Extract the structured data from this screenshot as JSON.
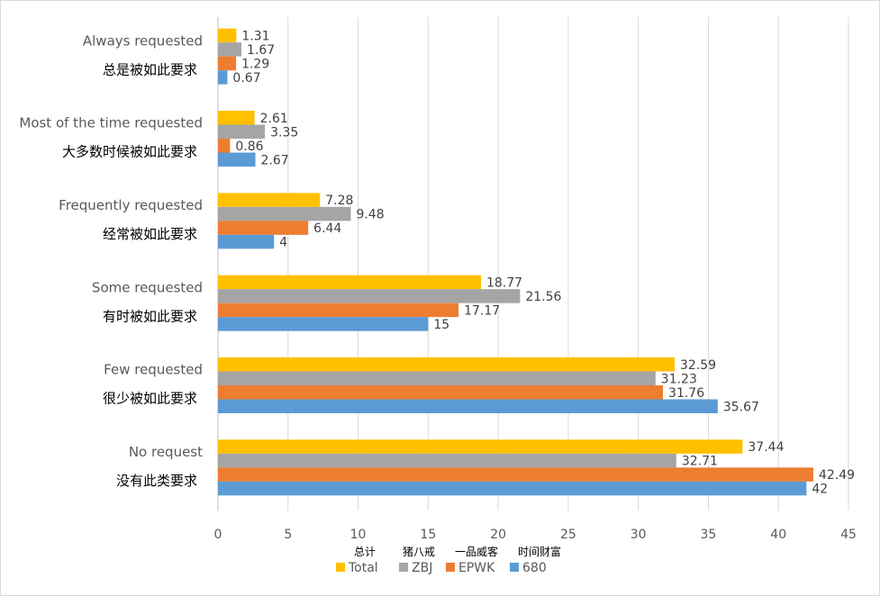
{
  "chart_data": {
    "type": "bar",
    "orientation": "horizontal",
    "categories": [
      {
        "en": "No request",
        "zh": "没有此类要求"
      },
      {
        "en": "Few requested",
        "zh": "很少被如此要求"
      },
      {
        "en": "Some requested",
        "zh": "有时被如此要求"
      },
      {
        "en": "Frequently requested",
        "zh": "经常被如此要求"
      },
      {
        "en": "Most of the time requested",
        "zh": "大多数时候被如此要求"
      },
      {
        "en": "Always requested",
        "zh": "总是被如此要求"
      }
    ],
    "series": [
      {
        "name": "Total",
        "name_zh": "总计",
        "color": "#FFC000",
        "values": [
          37.44,
          32.59,
          18.77,
          7.28,
          2.61,
          1.31
        ]
      },
      {
        "name": "ZBJ",
        "name_zh": "猪八戒",
        "color": "#A5A5A5",
        "values": [
          32.71,
          31.23,
          21.56,
          9.48,
          3.35,
          1.67
        ]
      },
      {
        "name": "EPWK",
        "name_zh": "一品威客",
        "color": "#ED7D31",
        "values": [
          42.49,
          31.76,
          17.17,
          6.44,
          0.86,
          1.29
        ]
      },
      {
        "name": "680",
        "name_zh": "时间财富",
        "color": "#5B9BD5",
        "values": [
          42,
          35.67,
          15,
          4,
          2.67,
          0.67
        ]
      }
    ],
    "value_labels": {
      "Total": [
        "37.44",
        "32.59",
        "18.77",
        "7.28",
        "2.61",
        "1.31"
      ],
      "ZBJ": [
        "32.71",
        "31.23",
        "21.56",
        "9.48",
        "3.35",
        "1.67"
      ],
      "EPWK": [
        "42.49",
        "31.76",
        "17.17",
        "6.44",
        "0.86",
        "1.29"
      ],
      "680": [
        "42",
        "35.67",
        "15",
        "4",
        "2.67",
        "0.67"
      ]
    },
    "xticks": [
      "0",
      "5",
      "10",
      "15",
      "20",
      "25",
      "30",
      "35",
      "40",
      "45"
    ],
    "xlim": [
      0,
      45
    ],
    "grid": "vertical",
    "legend_position": "bottom",
    "title": "",
    "xlabel": "",
    "ylabel": ""
  }
}
